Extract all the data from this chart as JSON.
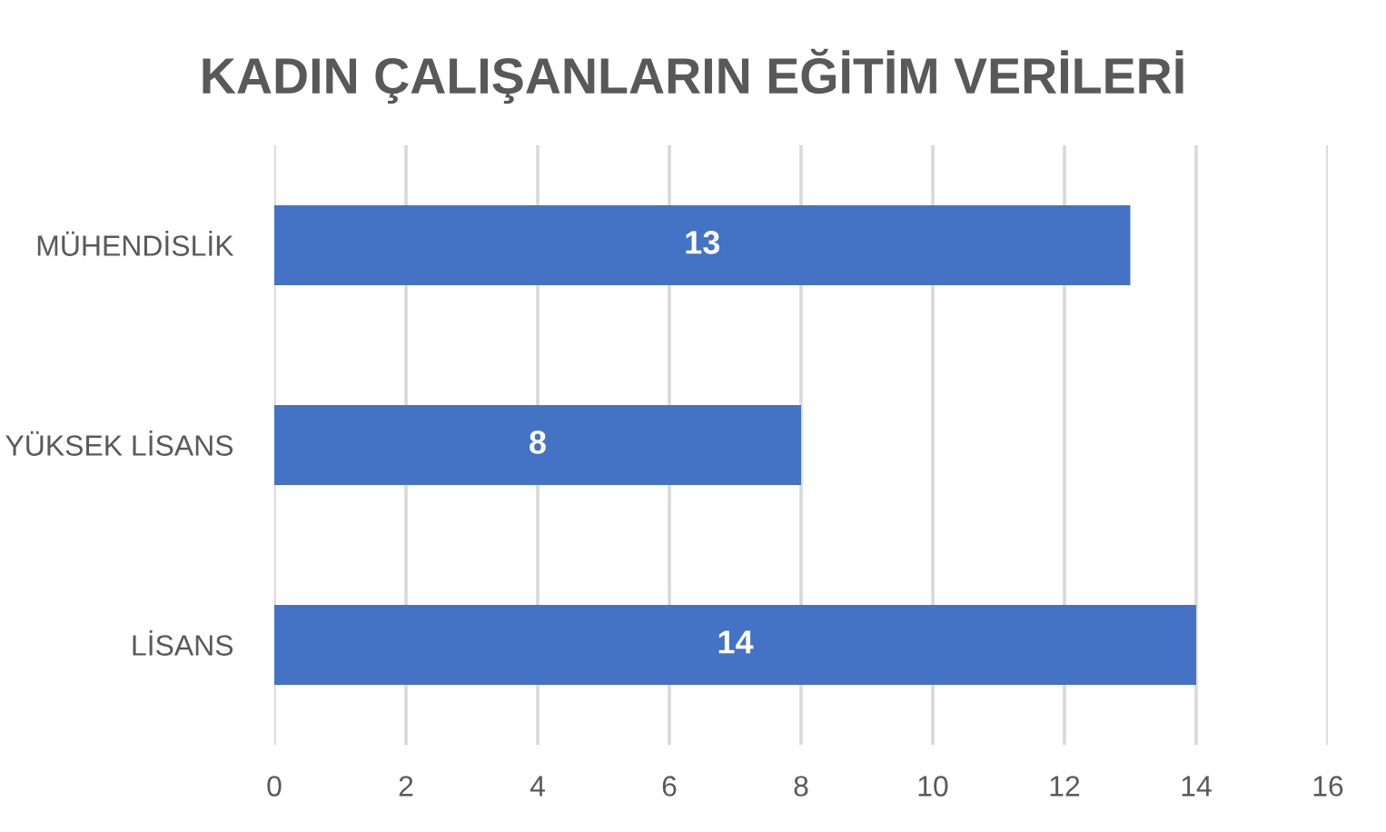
{
  "chart_data": {
    "type": "bar",
    "orientation": "horizontal",
    "title": "KADIN ÇALIŞANLARIN EĞİTİM VERİLERİ",
    "categories": [
      "MÜHENDİSLİK",
      "YÜKSEK LİSANS",
      "LİSANS"
    ],
    "values": [
      13,
      8,
      14
    ],
    "color": "#4472c4",
    "xlim": [
      0,
      16
    ],
    "xticks": [
      0,
      2,
      4,
      6,
      8,
      10,
      12,
      14,
      16
    ],
    "grid": "x",
    "data_labels": true
  }
}
